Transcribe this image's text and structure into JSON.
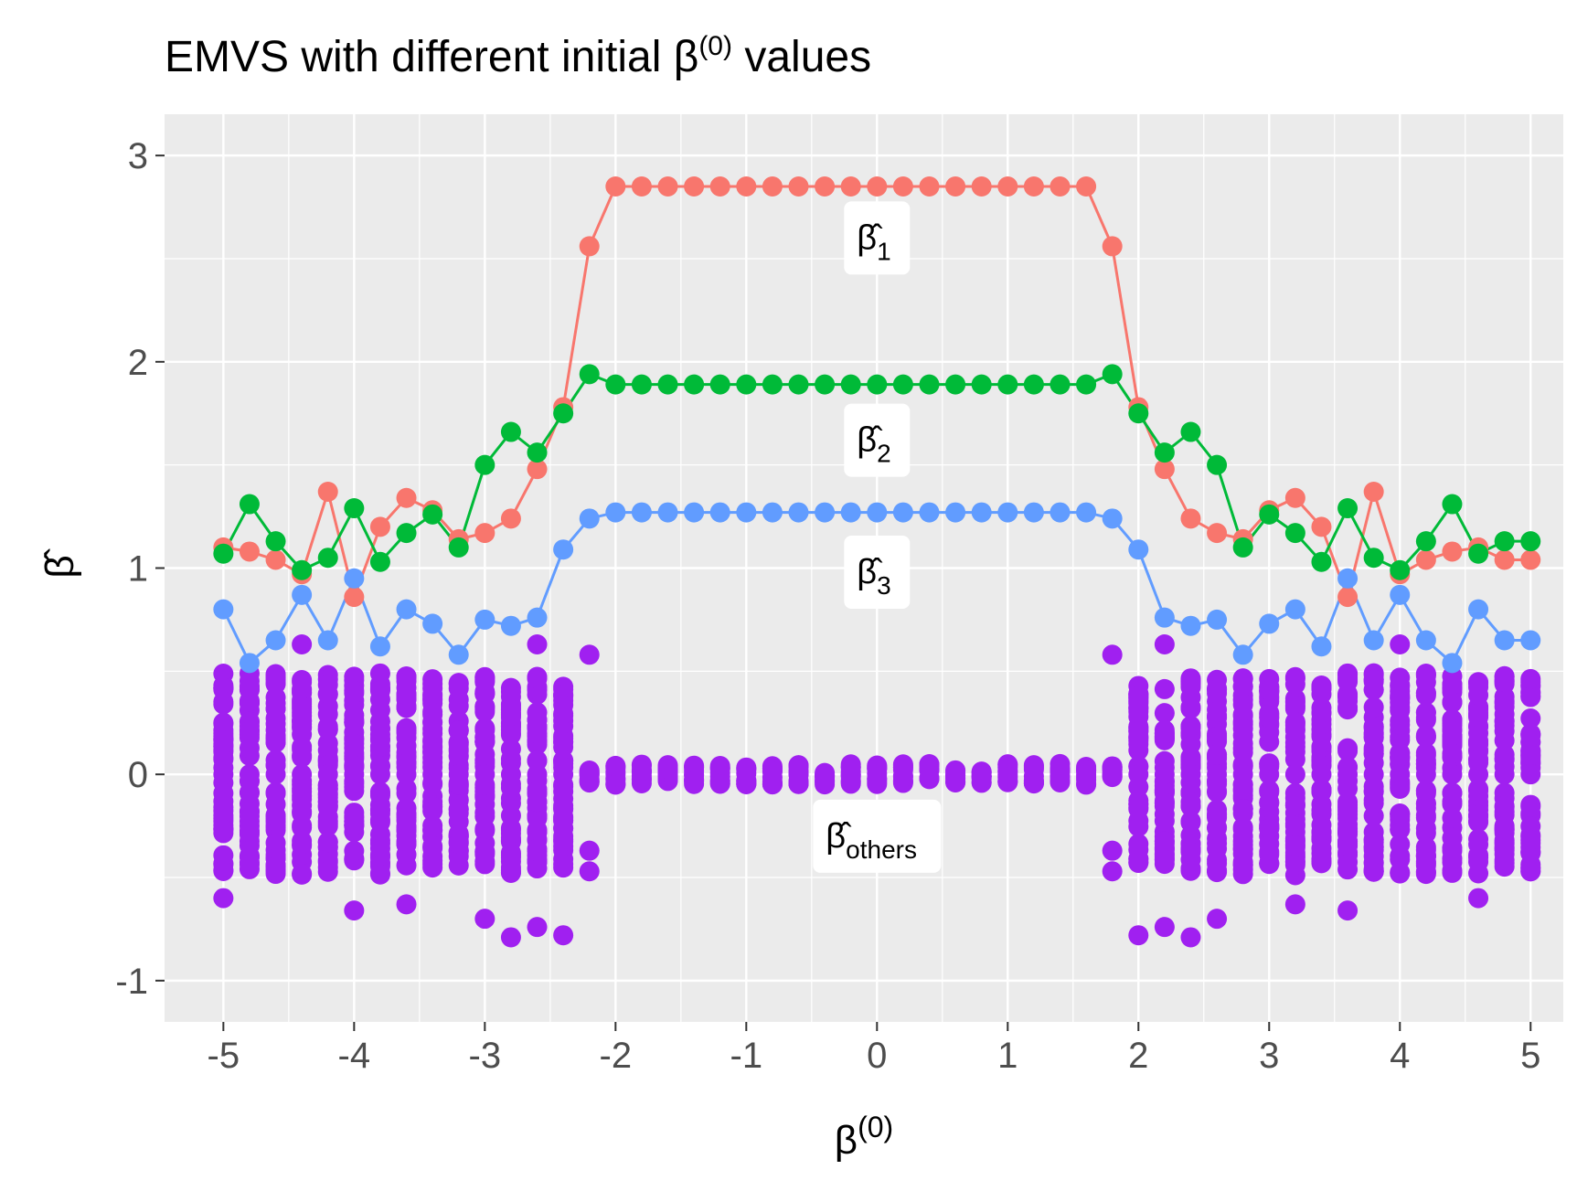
{
  "chart_data": {
    "type": "line+scatter",
    "title": "EMVS with different initial",
    "title_symbol": "β",
    "title_superscript": "(0)",
    "title_suffix": "values",
    "xlabel": "β",
    "xlabel_superscript": "(0)",
    "ylabel": "β̂",
    "xlim": [
      -5.45,
      5.25
    ],
    "ylim": [
      -1.2,
      3.2
    ],
    "x_ticks": [
      -5,
      -4,
      -3,
      -2,
      -1,
      0,
      1,
      2,
      3,
      4,
      5
    ],
    "x_tick_labels": [
      "-5",
      "-4",
      "-3",
      "-2",
      "-1",
      "0",
      "1",
      "2",
      "3",
      "4",
      "5"
    ],
    "y_ticks": [
      -1,
      0,
      1,
      2,
      3
    ],
    "y_tick_labels": [
      "-1",
      "0",
      "1",
      "2",
      "3"
    ],
    "x": [
      -5.0,
      -4.8,
      -4.6,
      -4.4,
      -4.2,
      -4.0,
      -3.8,
      -3.6,
      -3.4,
      -3.2,
      -3.0,
      -2.8,
      -2.6,
      -2.4,
      -2.2,
      -2.0,
      -1.8,
      -1.6,
      -1.4,
      -1.2,
      -1.0,
      -0.8,
      -0.6,
      -0.4,
      -0.2,
      0.0,
      0.2,
      0.4,
      0.6,
      0.8,
      1.0,
      1.2,
      1.4,
      1.6,
      1.8,
      2.0,
      2.2,
      2.4,
      2.6,
      2.8,
      3.0,
      3.2,
      3.4,
      3.6,
      3.8,
      4.0,
      4.2,
      4.4,
      4.6,
      4.8,
      5.0
    ],
    "series": [
      {
        "name": "beta1",
        "color": "#F8766D",
        "values": [
          1.1,
          1.08,
          1.04,
          0.97,
          1.37,
          0.86,
          1.2,
          1.34,
          1.28,
          1.14,
          1.17,
          1.24,
          1.48,
          1.78,
          2.56,
          2.85,
          2.85,
          2.85,
          2.85,
          2.85,
          2.85,
          2.85,
          2.85,
          2.85,
          2.85,
          2.85,
          2.85,
          2.85,
          2.85,
          2.85,
          2.85,
          2.85,
          2.85,
          2.85,
          2.56,
          1.78,
          1.48,
          1.24,
          1.17,
          1.14,
          1.28,
          1.34,
          1.2,
          0.86,
          1.37,
          0.97,
          1.04,
          1.08,
          1.1,
          1.04,
          1.04
        ]
      },
      {
        "name": "beta2",
        "color": "#00BA38",
        "values": [
          1.07,
          1.31,
          1.13,
          0.99,
          1.05,
          1.29,
          1.03,
          1.17,
          1.26,
          1.1,
          1.5,
          1.66,
          1.56,
          1.75,
          1.94,
          1.89,
          1.89,
          1.89,
          1.89,
          1.89,
          1.89,
          1.89,
          1.89,
          1.89,
          1.89,
          1.89,
          1.89,
          1.89,
          1.89,
          1.89,
          1.89,
          1.89,
          1.89,
          1.89,
          1.94,
          1.75,
          1.56,
          1.66,
          1.5,
          1.1,
          1.26,
          1.17,
          1.03,
          1.29,
          1.05,
          0.99,
          1.13,
          1.31,
          1.07,
          1.13,
          1.13
        ]
      },
      {
        "name": "beta3",
        "color": "#619CFF",
        "values": [
          0.8,
          0.54,
          0.65,
          0.87,
          0.65,
          0.95,
          0.62,
          0.8,
          0.73,
          0.58,
          0.75,
          0.72,
          0.76,
          1.09,
          1.24,
          1.27,
          1.27,
          1.27,
          1.27,
          1.27,
          1.27,
          1.27,
          1.27,
          1.27,
          1.27,
          1.27,
          1.27,
          1.27,
          1.27,
          1.27,
          1.27,
          1.27,
          1.27,
          1.27,
          1.24,
          1.09,
          0.76,
          0.72,
          0.75,
          0.58,
          0.73,
          0.8,
          0.62,
          0.95,
          0.65,
          0.87,
          0.65,
          0.54,
          0.8,
          0.65,
          0.65
        ]
      }
    ],
    "others": {
      "name": "others",
      "color": "#A020F0",
      "near_zero_range": [
        -0.05,
        0.05
      ],
      "near_zero_x_range": [
        -2.2,
        1.8
      ],
      "extreme_points": [
        {
          "x": -5.0,
          "y": -0.6
        },
        {
          "x": -4.4,
          "y": 0.63
        },
        {
          "x": -4.0,
          "y": -0.66
        },
        {
          "x": -3.6,
          "y": -0.63
        },
        {
          "x": -2.8,
          "y": -0.79
        },
        {
          "x": -2.6,
          "y": -0.74
        },
        {
          "x": -2.4,
          "y": -0.78
        },
        {
          "x": -2.2,
          "y": 0.58
        },
        {
          "x": -2.2,
          "y": -0.37
        },
        {
          "x": -2.2,
          "y": -0.47
        },
        {
          "x": -3.0,
          "y": -0.7
        },
        {
          "x": -2.6,
          "y": 0.63
        },
        {
          "x": 1.8,
          "y": 0.58
        },
        {
          "x": 1.8,
          "y": -0.37
        },
        {
          "x": 1.8,
          "y": -0.47
        },
        {
          "x": 2.0,
          "y": -0.78
        },
        {
          "x": 2.2,
          "y": -0.74
        },
        {
          "x": 2.4,
          "y": -0.79
        },
        {
          "x": 2.6,
          "y": -0.7
        },
        {
          "x": 2.2,
          "y": 0.63
        },
        {
          "x": 3.2,
          "y": -0.63
        },
        {
          "x": 3.6,
          "y": -0.66
        },
        {
          "x": 4.0,
          "y": 0.63
        },
        {
          "x": 4.6,
          "y": -0.6
        }
      ]
    },
    "labels": [
      {
        "text": "β̂",
        "subscript": "1",
        "x": 0.0,
        "y": 2.6
      },
      {
        "text": "β̂",
        "subscript": "2",
        "x": 0.0,
        "y": 1.62
      },
      {
        "text": "β̂",
        "subscript": "3",
        "x": 0.0,
        "y": 0.98
      },
      {
        "text": "β̂",
        "subscript": "others",
        "x": 0.0,
        "y": -0.3
      }
    ]
  }
}
